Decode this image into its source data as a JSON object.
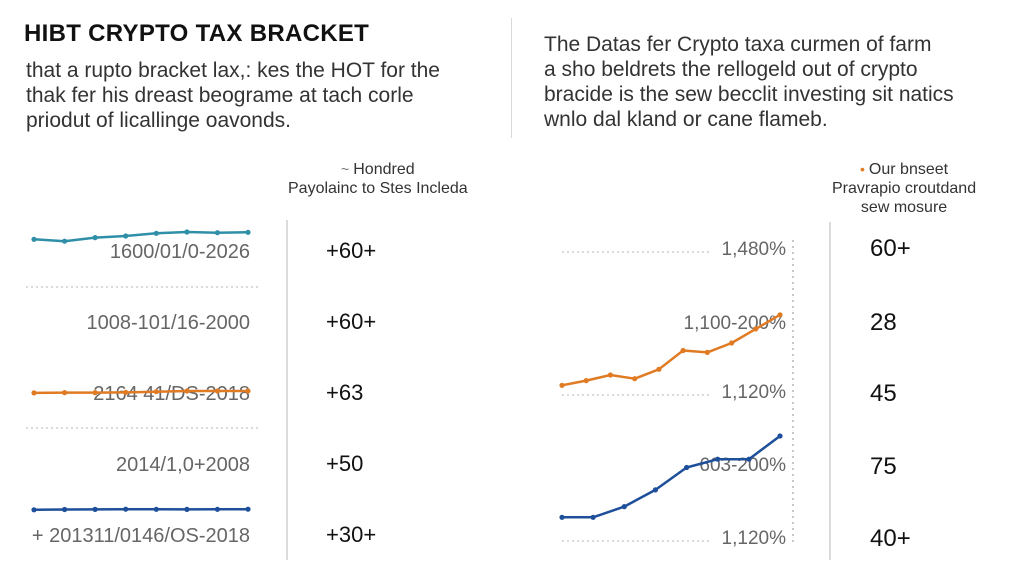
{
  "title": "HIBT CRYPTO TAX BRACKET",
  "left_paragraph": [
    "that a rupto bracket lax,: kes the HOT  for the",
    "thak fer his dreast beograme at tach corle",
    "priodut of licallinge oavonds."
  ],
  "right_paragraph": [
    "The Datas fer Crypto taxa curmen of farm",
    "a sho beldrets the rellogeld out of crypto",
    "bracide is the sew becclit investing sit natics",
    "wnlo dal kland or cane flameb."
  ],
  "left_legend": {
    "marker": "~",
    "lines": [
      "Hondred",
      "Payolainc to Stes Incleda"
    ]
  },
  "right_legend": {
    "marker": "•",
    "lines": [
      "Our bnseet",
      "Pravrapio croutdand",
      "sew mosure"
    ]
  },
  "colors": {
    "teal": "#2f8fa8",
    "orange": "#e07b24",
    "navy": "#1e4f9b",
    "grid": "#b5b5b5"
  },
  "chart_data": [
    {
      "type": "line",
      "row_labels": [
        "1600/01/0-2026",
        "1008-101/16-2000",
        "2164 41/DS-2018",
        "2014/1,0+2008",
        "+ 201311/0146/OS-2018"
      ],
      "values": [
        "+60+",
        "+60+",
        "+63",
        "+50",
        "+30+"
      ],
      "series": [
        {
          "color": "teal",
          "x": [
            0,
            1,
            2,
            3,
            4,
            5,
            6,
            7
          ],
          "y": [
            0.78,
            0.72,
            0.83,
            0.88,
            0.96,
            1.0,
            0.98,
            0.99
          ]
        },
        {
          "color": "orange",
          "x": [
            0,
            1,
            2,
            3,
            4,
            5,
            6,
            7
          ],
          "y": [
            0.18,
            0.19,
            0.19,
            0.2,
            0.23,
            0.26,
            0.26,
            0.26
          ]
        },
        {
          "color": "navy",
          "x": [
            0,
            1,
            2,
            3,
            4,
            5,
            6,
            7
          ],
          "y": [
            0.02,
            0.04,
            0.05,
            0.07,
            0.06,
            0.05,
            0.06,
            0.07
          ]
        }
      ]
    },
    {
      "type": "line",
      "row_labels": [
        "1,480%",
        "1,100-200%",
        "1,120%",
        "603-200%",
        "1,120%"
      ],
      "values": [
        "60+",
        "28",
        "45",
        "75",
        "40+"
      ],
      "series": [
        {
          "color": "orange",
          "x": [
            0,
            1,
            2,
            3,
            4,
            5,
            6,
            7,
            8,
            9
          ],
          "y": [
            0.05,
            0.1,
            0.16,
            0.12,
            0.22,
            0.42,
            0.4,
            0.5,
            0.65,
            0.8
          ]
        },
        {
          "color": "navy",
          "x": [
            0,
            1,
            2,
            3,
            4,
            5,
            6,
            7
          ],
          "y": [
            0.02,
            0.02,
            0.15,
            0.35,
            0.62,
            0.72,
            0.72,
            1.0
          ]
        }
      ]
    }
  ]
}
